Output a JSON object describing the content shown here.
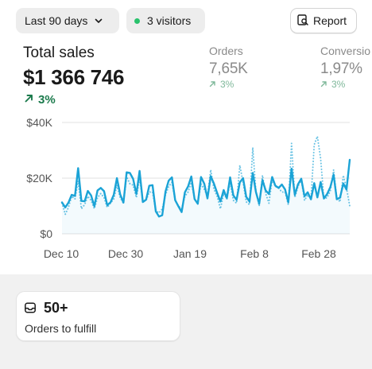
{
  "toolbar": {
    "date_range": "Last 90 days",
    "visitors": "3 visitors",
    "report": "Report"
  },
  "metrics": {
    "total_sales": {
      "label": "Total sales",
      "value": "$1 366 746",
      "change": "3%"
    },
    "orders": {
      "label": "Orders",
      "value": "7,65K",
      "change": "3%"
    },
    "conversion": {
      "label": "Conversio",
      "value": "1,97%",
      "change": "3%"
    }
  },
  "colors": {
    "accent": "#1ba3d6",
    "positive": "#1b7a4c",
    "visitor_dot": "#29c26c"
  },
  "chart_data": {
    "type": "line",
    "ylim": [
      0,
      40000
    ],
    "y_ticks": [
      {
        "value": 0,
        "label": "$0"
      },
      {
        "value": 20000,
        "label": "$20K"
      },
      {
        "value": 40000,
        "label": "$40K"
      }
    ],
    "x_ticks": [
      "Dec 10",
      "Dec 30",
      "Jan 19",
      "Feb 8",
      "Feb 28"
    ],
    "series": [
      {
        "style": "solid",
        "values": [
          11300,
          9500,
          11200,
          14000,
          13600,
          23600,
          11800,
          11700,
          15400,
          13800,
          9900,
          15600,
          16500,
          15300,
          10300,
          11300,
          14000,
          20000,
          14200,
          11200,
          22100,
          21900,
          19700,
          14300,
          22600,
          11400,
          12300,
          17300,
          17500,
          8100,
          6200,
          6700,
          15200,
          19100,
          20300,
          12100,
          9900,
          7800,
          14900,
          17000,
          20600,
          12500,
          10800,
          20400,
          18000,
          12700,
          20700,
          18000,
          14700,
          11600,
          15700,
          12800,
          20300,
          13800,
          12200,
          18500,
          20000,
          13300,
          11600,
          21900,
          15000,
          10800,
          19300,
          15600,
          14300,
          20400,
          17300,
          16500,
          17700,
          15900,
          11300,
          23400,
          14000,
          17800,
          19800,
          13500,
          14900,
          12400,
          18200,
          13100,
          18600,
          12700,
          14300,
          16800,
          21300,
          12400,
          13000,
          18100,
          15900,
          26600
        ]
      },
      {
        "style": "dotted",
        "values": [
          11000,
          7000,
          9500,
          13500,
          12500,
          19000,
          9000,
          10500,
          13500,
          12000,
          9000,
          13000,
          14500,
          13000,
          9500,
          11000,
          12500,
          17500,
          13000,
          11000,
          20500,
          18000,
          17500,
          13000,
          20000,
          11500,
          12000,
          15000,
          15000,
          8500,
          7500,
          9000,
          14000,
          17000,
          18500,
          12000,
          10000,
          9000,
          13500,
          15000,
          18500,
          12500,
          11000,
          18000,
          16000,
          13500,
          23000,
          16000,
          13500,
          9000,
          14500,
          12500,
          18500,
          12000,
          11000,
          24600,
          18500,
          11500,
          10500,
          31000,
          15000,
          10000,
          21000,
          14500,
          11000,
          19500,
          17000,
          16500,
          15000,
          15000,
          10500,
          32500,
          13000,
          17000,
          19500,
          12000,
          14000,
          12500,
          32000,
          35000,
          27000,
          12500,
          13000,
          15500,
          23000,
          13000,
          11500,
          21000,
          16500,
          10000
        ]
      }
    ]
  },
  "fulfill": {
    "count": "50+",
    "label": "Orders to fulfill"
  }
}
